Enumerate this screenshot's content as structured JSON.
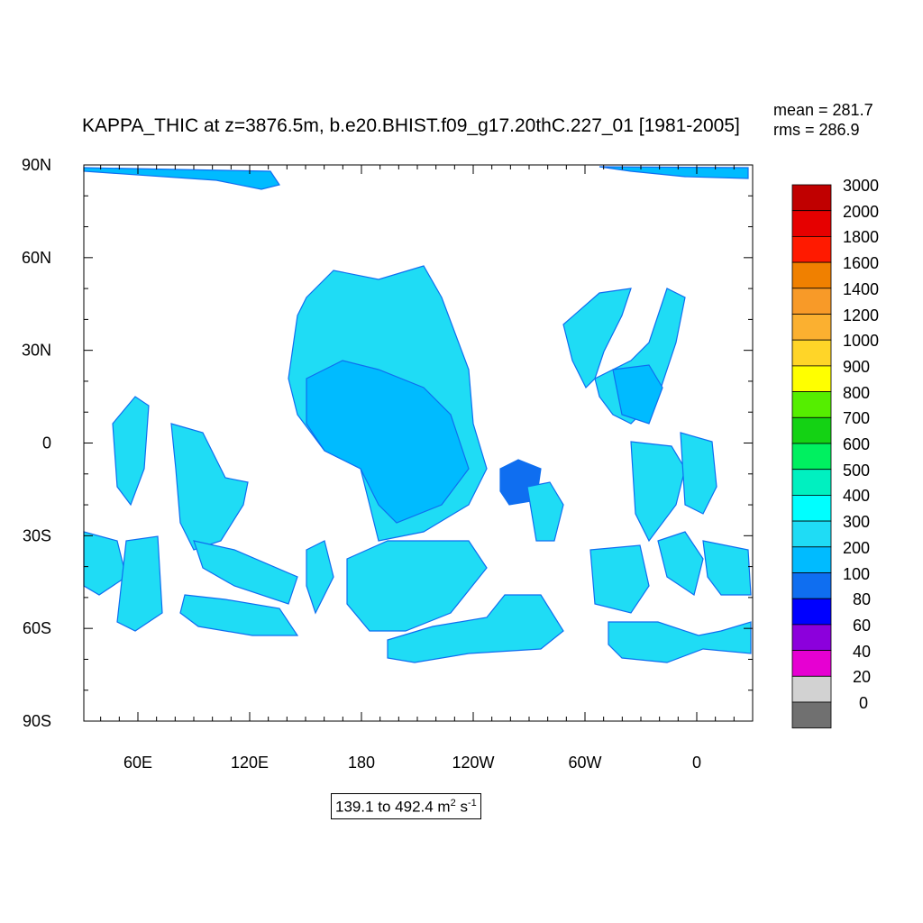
{
  "title": "KAPPA_THIC at z=3876.5m, b.e20.BHIST.f09_g17.20thC.227_01 [1981-2005]",
  "stats": {
    "mean": "mean = 281.7",
    "rms": "rms = 286.9"
  },
  "range_label": {
    "text": "139.1 to 492.4 m",
    "unit_sup1": "2",
    "unit_s": " s",
    "unit_sup2": "-1"
  },
  "axes": {
    "lat_labels": [
      "90N",
      "60N",
      "30N",
      "0",
      "30S",
      "60S",
      "90S"
    ],
    "lon_labels": [
      "60E",
      "120E",
      "180",
      "120W",
      "60W",
      "0"
    ]
  },
  "colorbar": {
    "levels": [
      "3000",
      "2000",
      "1800",
      "1600",
      "1400",
      "1200",
      "1000",
      "900",
      "800",
      "700",
      "600",
      "500",
      "400",
      "300",
      "200",
      "100",
      "80",
      "60",
      "40",
      "20",
      "0"
    ],
    "colors": [
      "#c00000",
      "#e60000",
      "#ff1a00",
      "#f08000",
      "#f89a28",
      "#fbb030",
      "#ffd528",
      "#ffff00",
      "#55ee00",
      "#14d214",
      "#00f060",
      "#00f0c0",
      "#00ffff",
      "#1fdcf5",
      "#00bbff",
      "#0f6ef0",
      "#0000ff",
      "#8c00dc",
      "#e600d2",
      "#d2d2d2",
      "#707070"
    ]
  },
  "fill_colors": {
    "ocean_main": "#1fdcf5",
    "ocean_mid": "#00bbff",
    "ocean_low": "#0f6ef0"
  }
}
